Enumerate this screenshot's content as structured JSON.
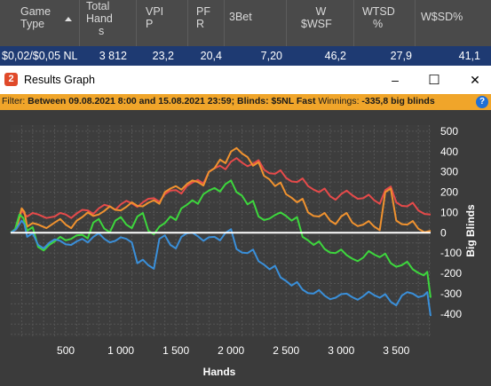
{
  "stats": {
    "columns": [
      {
        "label_lines": [
          "Game",
          "Type"
        ]
      },
      {
        "label_lines": [
          "Total",
          "Hand",
          "s"
        ]
      },
      {
        "label_lines": [
          "VPI",
          "P"
        ]
      },
      {
        "label_lines": [
          "PF",
          "R"
        ]
      },
      {
        "label_lines": [
          "3Bet"
        ]
      },
      {
        "label_lines": [
          "W",
          "$WSF"
        ]
      },
      {
        "label_lines": [
          "WTSD",
          "%"
        ]
      },
      {
        "label_lines": [
          "W$SD%"
        ]
      }
    ],
    "row": [
      "$0,02/$0,05 NL",
      "3 812",
      "23,2",
      "20,4",
      "7,20",
      "46,2",
      "27,9",
      "41,1"
    ]
  },
  "window": {
    "title": "Results Graph",
    "icon_text": "2",
    "minimize": "–",
    "maximize": "☐",
    "close": "✕"
  },
  "filter": {
    "prefix": "Filter: ",
    "text": "Between 09.08.2021 8:00 and 15.08.2021 23:59; Blinds: $5NL Fast",
    "winnings_label": " Winnings: ",
    "winnings_value": "-335,8 big blinds",
    "help_icon": "?"
  },
  "chart_data": {
    "type": "line",
    "xlabel": "Hands",
    "ylabel": "Big Blinds",
    "xlim": [
      0,
      3812
    ],
    "ylim": [
      -500,
      500
    ],
    "x_ticks": [
      500,
      1000,
      1500,
      2000,
      2500,
      3000,
      3500
    ],
    "x_tick_labels": [
      "500",
      "1 000",
      "1 500",
      "2 000",
      "2 500",
      "3 000",
      "3 500"
    ],
    "y_ticks": [
      500,
      400,
      300,
      200,
      100,
      0,
      -100,
      -200,
      -300,
      -400
    ],
    "y_tick_labels": [
      "500",
      "400",
      "300",
      "200",
      "100",
      "0",
      "-100",
      "-200",
      "-300",
      "-400"
    ],
    "series": [
      {
        "color": "#e64a4a",
        "x": [
          0,
          100,
          150,
          250,
          400,
          500,
          600,
          700,
          800,
          900,
          1000,
          1100,
          1200,
          1300,
          1400,
          1500,
          1600,
          1700,
          1800,
          1900,
          2000,
          2100,
          2200,
          2300,
          2400,
          2500,
          2600,
          2700,
          2800,
          2900,
          3000,
          3100,
          3200,
          3300,
          3400,
          3500,
          3600,
          3700,
          3812
        ],
        "y": [
          0,
          110,
          80,
          90,
          80,
          90,
          95,
          110,
          120,
          130,
          140,
          145,
          150,
          170,
          190,
          210,
          230,
          260,
          300,
          330,
          350,
          345,
          340,
          310,
          290,
          270,
          250,
          230,
          200,
          180,
          190,
          185,
          170,
          160,
          210,
          150,
          130,
          110,
          90
        ]
      },
      {
        "color": "#f0922f",
        "x": [
          0,
          100,
          150,
          250,
          400,
          500,
          600,
          700,
          800,
          900,
          1000,
          1100,
          1200,
          1300,
          1400,
          1500,
          1600,
          1700,
          1800,
          1900,
          2000,
          2100,
          2200,
          2300,
          2400,
          2500,
          2600,
          2700,
          2800,
          2900,
          3000,
          3100,
          3200,
          3300,
          3400,
          3500,
          3600,
          3700,
          3812
        ],
        "y": [
          0,
          120,
          30,
          40,
          50,
          40,
          60,
          100,
          90,
          130,
          110,
          150,
          130,
          160,
          200,
          230,
          240,
          250,
          300,
          360,
          400,
          390,
          330,
          280,
          230,
          190,
          150,
          100,
          80,
          60,
          80,
          50,
          40,
          30,
          200,
          60,
          40,
          20,
          10
        ]
      },
      {
        "color": "#3dd63d",
        "x": [
          0,
          80,
          150,
          250,
          350,
          450,
          550,
          650,
          750,
          850,
          950,
          1050,
          1150,
          1250,
          1350,
          1450,
          1550,
          1650,
          1750,
          1850,
          1950,
          2050,
          2150,
          2250,
          2350,
          2450,
          2550,
          2650,
          2750,
          2850,
          2950,
          3050,
          3150,
          3250,
          3350,
          3450,
          3550,
          3650,
          3750,
          3812
        ],
        "y": [
          0,
          90,
          10,
          -70,
          -60,
          -20,
          -30,
          -10,
          50,
          20,
          60,
          40,
          80,
          10,
          30,
          80,
          120,
          160,
          190,
          220,
          240,
          200,
          140,
          80,
          70,
          100,
          60,
          -20,
          -60,
          -80,
          -100,
          -110,
          -140,
          -90,
          -120,
          -150,
          -160,
          -180,
          -210,
          -320
        ]
      },
      {
        "color": "#3a8fd9",
        "x": [
          0,
          100,
          150,
          250,
          350,
          450,
          550,
          650,
          750,
          850,
          950,
          1050,
          1150,
          1250,
          1350,
          1450,
          1550,
          1650,
          1750,
          1850,
          1950,
          2050,
          2150,
          2250,
          2350,
          2450,
          2550,
          2650,
          2750,
          2850,
          2950,
          3050,
          3150,
          3250,
          3350,
          3450,
          3550,
          3650,
          3750,
          3812
        ],
        "y": [
          0,
          60,
          -20,
          -60,
          -50,
          -40,
          -60,
          -30,
          -20,
          -30,
          -40,
          -30,
          -150,
          -160,
          -30,
          -60,
          -20,
          0,
          -40,
          -20,
          0,
          -80,
          -100,
          -140,
          -180,
          -220,
          -260,
          -280,
          -300,
          -310,
          -320,
          -300,
          -330,
          -290,
          -320,
          -340,
          -310,
          -300,
          -310,
          -410
        ]
      }
    ]
  }
}
